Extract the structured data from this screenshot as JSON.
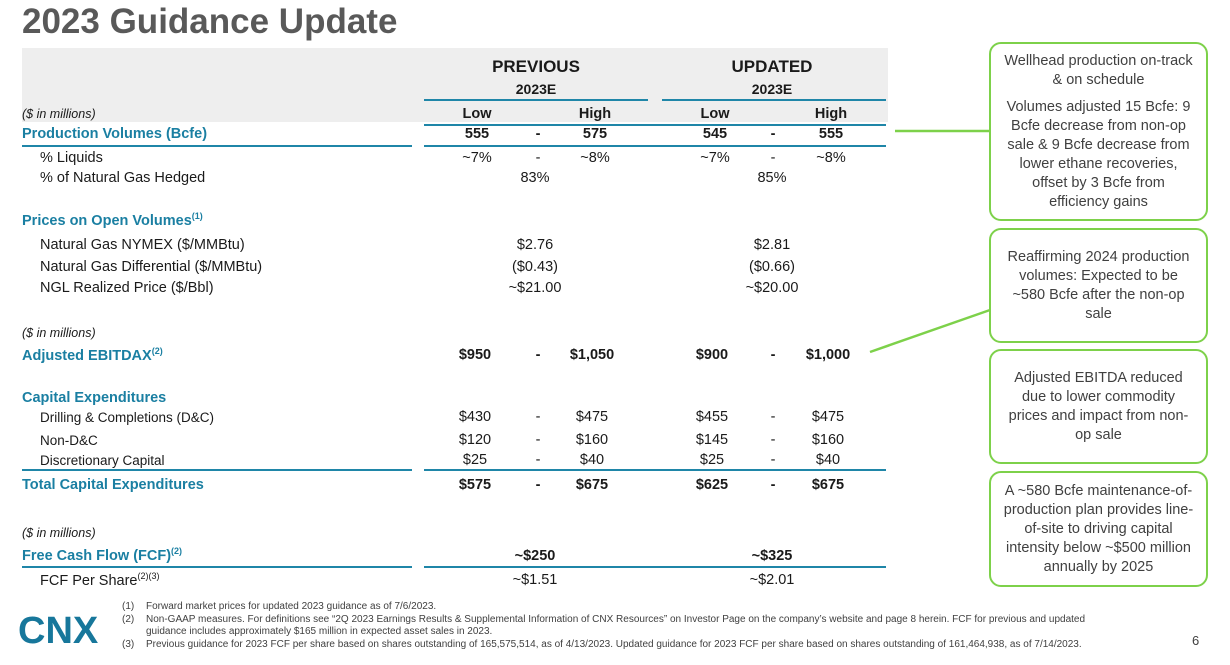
{
  "title": "2023 Guidance Update",
  "header": {
    "previous": {
      "label": "PREVIOUS",
      "year": "2023E"
    },
    "updated": {
      "label": "UPDATED",
      "year": "2023E"
    },
    "units": "($ in millions)",
    "low": "Low",
    "high": "High"
  },
  "rows": {
    "production": {
      "label": "Production Volumes (Bcfe)",
      "prev_low": "555",
      "prev_dash": "-",
      "prev_high": "575",
      "upd_low": "545",
      "upd_dash": "-",
      "upd_high": "555"
    },
    "liquids": {
      "label": "% Liquids",
      "prev_low": "~7%",
      "prev_dash": "-",
      "prev_high": "~8%",
      "upd_low": "~7%",
      "upd_dash": "-",
      "upd_high": "~8%"
    },
    "hedged": {
      "label": "% of Natural Gas Hedged",
      "prev": "83%",
      "upd": "85%"
    },
    "prices_header": {
      "label": "Prices on Open Volumes",
      "note": "(1)"
    },
    "nymex": {
      "label": "Natural Gas NYMEX ($/MMBtu)",
      "prev": "$2.76",
      "upd": "$2.81"
    },
    "differential": {
      "label": "Natural Gas Differential ($/MMBtu)",
      "prev": "($0.43)",
      "upd": "($0.66)"
    },
    "ngl": {
      "label": "NGL Realized Price ($/Bbl)",
      "prev": "~$21.00",
      "upd": "~$20.00"
    },
    "units2": "($ in millions)",
    "ebitdax": {
      "label": "Adjusted EBITDAX",
      "note": "(2)",
      "prev_low": "$950",
      "prev_dash": "-",
      "prev_high": "$1,050",
      "upd_low": "$900",
      "upd_dash": "-",
      "upd_high": "$1,000"
    },
    "capex_header": {
      "label": "Capital Expenditures"
    },
    "dc": {
      "label": "Drilling & Completions (D&C)",
      "prev_low": "$430",
      "prev_dash": "-",
      "prev_high": "$475",
      "upd_low": "$455",
      "upd_dash": "-",
      "upd_high": "$475"
    },
    "nondc": {
      "label": "Non-D&C",
      "prev_low": "$120",
      "prev_dash": "-",
      "prev_high": "$160",
      "upd_low": "$145",
      "upd_dash": "-",
      "upd_high": "$160"
    },
    "discretionary": {
      "label": "Discretionary Capital",
      "prev_low": "$25",
      "prev_dash": "-",
      "prev_high": "$40",
      "upd_low": "$25",
      "upd_dash": "-",
      "upd_high": "$40"
    },
    "total_capex": {
      "label": "Total Capital Expenditures",
      "prev_low": "$575",
      "prev_dash": "-",
      "prev_high": "$675",
      "upd_low": "$625",
      "upd_dash": "-",
      "upd_high": "$675"
    },
    "units3": "($ in millions)",
    "fcf": {
      "label": "Free Cash Flow (FCF)",
      "note": "(2)",
      "prev": "~$250",
      "upd": "~$325"
    },
    "fcf_share": {
      "label": "FCF Per Share",
      "note": "(2)(3)",
      "prev": "~$1.51",
      "upd": "~$2.01"
    }
  },
  "callouts": {
    "production_a": "Wellhead production on-track & on schedule",
    "production_b": "Volumes adjusted 15 Bcfe: 9 Bcfe decrease from non-op sale & 9 Bcfe decrease from lower ethane recoveries, offset by 3 Bcfe from efficiency gains",
    "reaffirm": "Reaffirming 2024 production volumes: Expected to be ~580 Bcfe after the non-op sale",
    "ebitda": "Adjusted EBITDA reduced due to lower commodity prices and impact from non-op sale",
    "maintenance": "A ~580 Bcfe maintenance-of-production plan provides line-of-site to driving capital intensity below ~$500 million annually by 2025"
  },
  "footnotes": [
    {
      "num": "(1)",
      "text": "Forward market prices for updated 2023 guidance as of 7/6/2023."
    },
    {
      "num": "(2)",
      "text": "Non-GAAP measures. For definitions see “2Q 2023 Earnings Results & Supplemental Information of CNX Resources” on Investor Page on the company’s website and page 8 herein. FCF for previous and updated",
      "text2": "guidance includes approximately $165 million in expected asset sales in 2023."
    },
    {
      "num": "(3)",
      "text": "Previous guidance for 2023 FCF per share based on shares outstanding of 165,575,514, as of 4/13/2023. Updated guidance for 2023 FCF per share based on shares outstanding of 161,464,938, as of 7/14/2023."
    }
  ],
  "logo": "CNX",
  "page_number": "6",
  "colors": {
    "accent": "#1a7fa2",
    "callout_border": "#7dd14a",
    "title": "#595959"
  }
}
